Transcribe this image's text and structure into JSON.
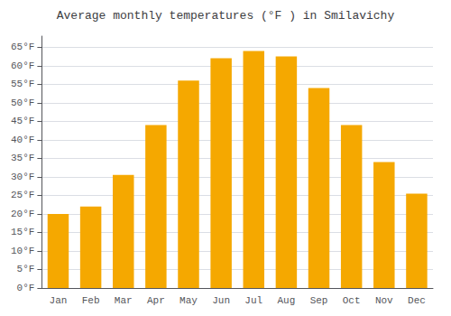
{
  "chart_data": {
    "type": "bar",
    "title": "Average monthly temperatures (°F ) in Smilavichy",
    "categories": [
      "Jan",
      "Feb",
      "Mar",
      "Apr",
      "May",
      "Jun",
      "Jul",
      "Aug",
      "Sep",
      "Oct",
      "Nov",
      "Dec"
    ],
    "values": [
      20,
      22,
      30.5,
      44,
      56,
      62,
      64,
      62.5,
      54,
      44,
      34,
      25.5
    ],
    "color": "#F5A800",
    "ylim": [
      0,
      68
    ],
    "yticks": [
      {
        "value": 0,
        "label": "0°F"
      },
      {
        "value": 5,
        "label": "5°F"
      },
      {
        "value": 10,
        "label": "10°F"
      },
      {
        "value": 15,
        "label": "15°F"
      },
      {
        "value": 20,
        "label": "20°F"
      },
      {
        "value": 25,
        "label": "25°F"
      },
      {
        "value": 30,
        "label": "30°F"
      },
      {
        "value": 35,
        "label": "35°F"
      },
      {
        "value": 40,
        "label": "40°F"
      },
      {
        "value": 45,
        "label": "45°F"
      },
      {
        "value": 50,
        "label": "50°F"
      },
      {
        "value": 55,
        "label": "55°F"
      },
      {
        "value": 60,
        "label": "60°F"
      },
      {
        "value": 65,
        "label": "65°F"
      }
    ],
    "grid": true
  }
}
